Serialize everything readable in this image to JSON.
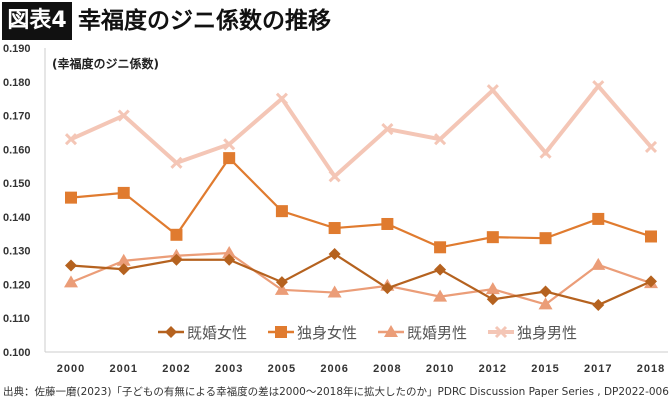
{
  "header": {
    "badge": "図表4",
    "title": "幸福度のジニ係数の推移"
  },
  "source": "出典：佐藤一磨(2023)「子どもの有無による幸福度の差は2000～2018年に拡大したのか」PDRC Discussion Paper Series , DP2022-006.",
  "chart_data": {
    "type": "line",
    "title": "幸福度のジニ係数の推移",
    "ylabel": "(幸福度のジニ係数)",
    "xlabel": "",
    "ylim": [
      0.1,
      0.19
    ],
    "yticks": [
      "0.100",
      "0.110",
      "0.120",
      "0.130",
      "0.140",
      "0.150",
      "0.160",
      "0.170",
      "0.180",
      "0.190"
    ],
    "categories": [
      "2000",
      "2001",
      "2002",
      "2003",
      "2005",
      "2006",
      "2008",
      "2010",
      "2012",
      "2015",
      "2017",
      "2018"
    ],
    "legend_position": "bottom-inside",
    "grid": false,
    "series": [
      {
        "name": "既婚女性",
        "marker": "diamond",
        "color": "#b5621f",
        "values": [
          0.1256,
          0.1245,
          0.1273,
          0.1273,
          0.1207,
          0.129,
          0.1189,
          0.1244,
          0.1156,
          0.1179,
          0.1139,
          0.1209
        ]
      },
      {
        "name": "独身女性",
        "marker": "square",
        "color": "#e07b2f",
        "values": [
          0.1457,
          0.1471,
          0.1347,
          0.1574,
          0.1417,
          0.1367,
          0.1379,
          0.131,
          0.134,
          0.1337,
          0.1394,
          0.1342
        ]
      },
      {
        "name": "既婚男性",
        "marker": "triangle",
        "color": "#eb9d78",
        "values": [
          0.1206,
          0.127,
          0.1285,
          0.1293,
          0.1184,
          0.1176,
          0.1196,
          0.1164,
          0.1186,
          0.1141,
          0.1258,
          0.1204
        ]
      },
      {
        "name": "独身男性",
        "marker": "x",
        "color": "#f4c6b6",
        "values": [
          0.163,
          0.17,
          0.156,
          0.1615,
          0.175,
          0.152,
          0.166,
          0.163,
          0.1775,
          0.159,
          0.1787,
          0.1607
        ]
      }
    ]
  }
}
